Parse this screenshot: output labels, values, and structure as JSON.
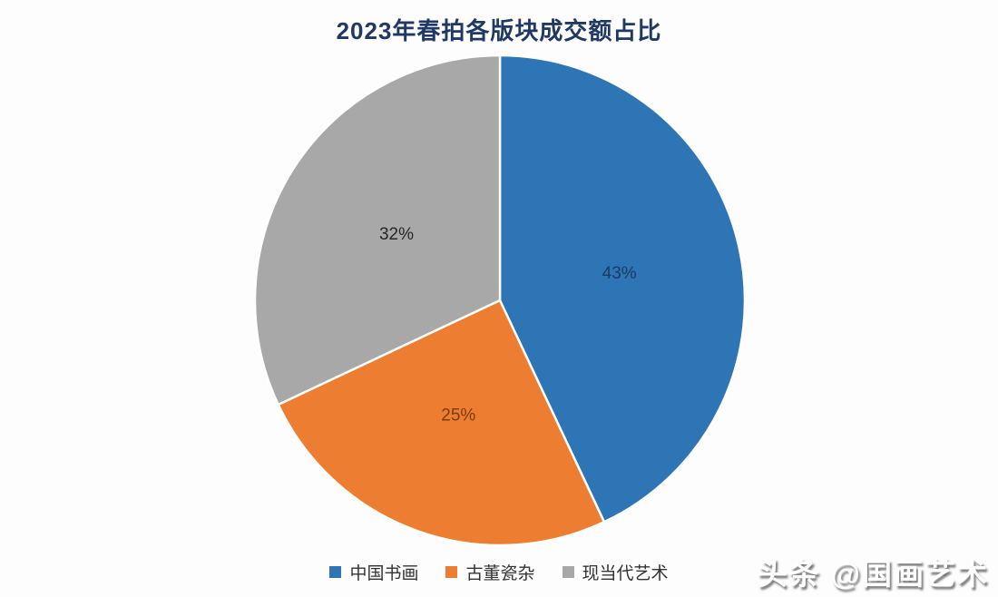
{
  "chart_data": {
    "type": "pie",
    "title": "2023年春拍各版块成交额占比",
    "categories": [
      "中国书画",
      "古董瓷杂",
      "现当代艺术"
    ],
    "values": [
      43,
      25,
      32
    ],
    "slices": [
      {
        "label": "中国书画",
        "value": 43,
        "percent_label": "43%",
        "color": "#2E75B6",
        "label_color": "#1E3A5F"
      },
      {
        "label": "古董瓷杂",
        "value": 25,
        "percent_label": "25%",
        "color": "#ED7D31",
        "label_color": "#7D3B0C"
      },
      {
        "label": "现当代艺术",
        "value": 32,
        "percent_label": "32%",
        "color": "#A8A8A8",
        "label_color": "#262626"
      }
    ],
    "start_angle": "top",
    "direction": "clockwise",
    "legend_position": "bottom",
    "data_label_radius_fraction": 0.5
  },
  "styles": {
    "title_color": "#1F3864",
    "legend_text_color": "#333333",
    "background": "#FDFDFD",
    "slice_border_color": "#FFFFFF"
  },
  "watermark": {
    "text": "头条 @国画艺术",
    "color": "#FFFFFF"
  }
}
